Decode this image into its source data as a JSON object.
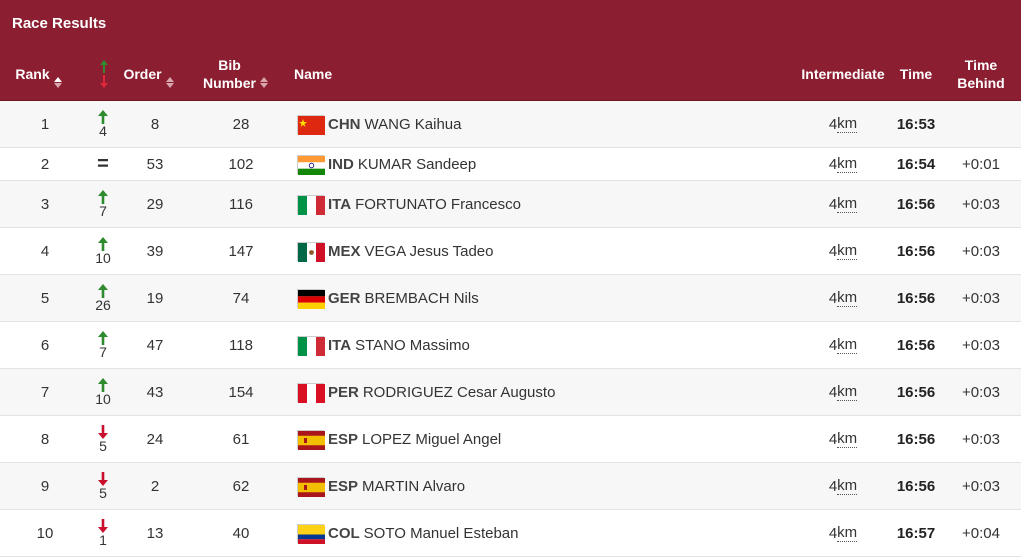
{
  "header": {
    "title": "Race Results"
  },
  "columns": {
    "rank": "Rank",
    "order": "Order",
    "bib_1": "Bib",
    "bib_2": "Number",
    "name": "Name",
    "intermediate": "Intermediate",
    "time": "Time",
    "behind_1": "Time",
    "behind_2": "Behind"
  },
  "arrow_colors": {
    "up": "#2e8b2e",
    "down": "#c8102e"
  },
  "rows": [
    {
      "rank": "1",
      "move": "up",
      "change": "4",
      "order": "8",
      "bib": "28",
      "noc": "CHN",
      "name": "WANG Kaihua",
      "flag": "flag-china-icon",
      "dist": "4",
      "unit": "km",
      "time": "16:53",
      "behind": ""
    },
    {
      "rank": "2",
      "move": "same",
      "change": "",
      "order": "53",
      "bib": "102",
      "noc": "IND",
      "name": "KUMAR Sandeep",
      "flag": "flag-india-icon",
      "dist": "4",
      "unit": "km",
      "time": "16:54",
      "behind": "+0:01"
    },
    {
      "rank": "3",
      "move": "up",
      "change": "7",
      "order": "29",
      "bib": "116",
      "noc": "ITA",
      "name": "FORTUNATO Francesco",
      "flag": "flag-italy-icon",
      "dist": "4",
      "unit": "km",
      "time": "16:56",
      "behind": "+0:03"
    },
    {
      "rank": "4",
      "move": "up",
      "change": "10",
      "order": "39",
      "bib": "147",
      "noc": "MEX",
      "name": "VEGA Jesus Tadeo",
      "flag": "flag-mexico-icon",
      "dist": "4",
      "unit": "km",
      "time": "16:56",
      "behind": "+0:03"
    },
    {
      "rank": "5",
      "move": "up",
      "change": "26",
      "order": "19",
      "bib": "74",
      "noc": "GER",
      "name": "BREMBACH Nils",
      "flag": "flag-germany-icon",
      "dist": "4",
      "unit": "km",
      "time": "16:56",
      "behind": "+0:03"
    },
    {
      "rank": "6",
      "move": "up",
      "change": "7",
      "order": "47",
      "bib": "118",
      "noc": "ITA",
      "name": "STANO Massimo",
      "flag": "flag-italy-icon",
      "dist": "4",
      "unit": "km",
      "time": "16:56",
      "behind": "+0:03"
    },
    {
      "rank": "7",
      "move": "up",
      "change": "10",
      "order": "43",
      "bib": "154",
      "noc": "PER",
      "name": "RODRIGUEZ Cesar Augusto",
      "flag": "flag-peru-icon",
      "dist": "4",
      "unit": "km",
      "time": "16:56",
      "behind": "+0:03"
    },
    {
      "rank": "8",
      "move": "down",
      "change": "5",
      "order": "24",
      "bib": "61",
      "noc": "ESP",
      "name": "LOPEZ Miguel Angel",
      "flag": "flag-spain-icon",
      "dist": "4",
      "unit": "km",
      "time": "16:56",
      "behind": "+0:03"
    },
    {
      "rank": "9",
      "move": "down",
      "change": "5",
      "order": "2",
      "bib": "62",
      "noc": "ESP",
      "name": "MARTIN Alvaro",
      "flag": "flag-spain-icon",
      "dist": "4",
      "unit": "km",
      "time": "16:56",
      "behind": "+0:03"
    },
    {
      "rank": "10",
      "move": "down",
      "change": "1",
      "order": "13",
      "bib": "40",
      "noc": "COL",
      "name": "SOTO Manuel Esteban",
      "flag": "flag-colombia-icon",
      "dist": "4",
      "unit": "km",
      "time": "16:57",
      "behind": "+0:04"
    }
  ]
}
